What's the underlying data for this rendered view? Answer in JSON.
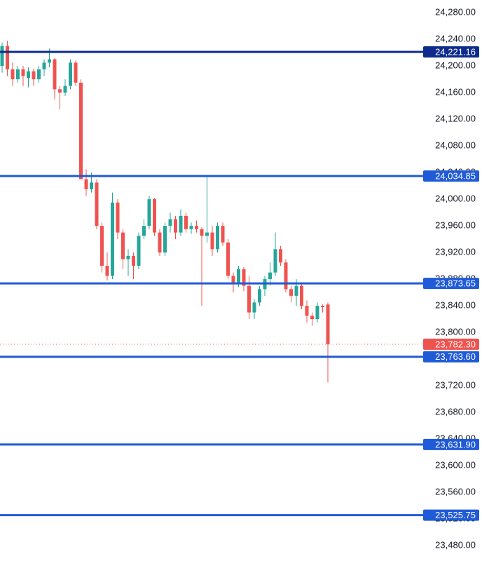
{
  "chart_data": {
    "type": "candlestick",
    "ylim": [
      23457,
      24299
    ],
    "yticks": [
      {
        "value": 24280,
        "label": "24,280.00"
      },
      {
        "value": 24240,
        "label": "24,240.00"
      },
      {
        "value": 24200,
        "label": "24,200.00"
      },
      {
        "value": 24160,
        "label": "24,160.00"
      },
      {
        "value": 24120,
        "label": "24,120.00"
      },
      {
        "value": 24080,
        "label": "24,080.00"
      },
      {
        "value": 24040,
        "label": "24,040.00"
      },
      {
        "value": 24000,
        "label": "24,000.00"
      },
      {
        "value": 23960,
        "label": "23,960.00"
      },
      {
        "value": 23920,
        "label": "23,920.00"
      },
      {
        "value": 23880,
        "label": "23,880.00"
      },
      {
        "value": 23840,
        "label": "23,840.00"
      },
      {
        "value": 23800,
        "label": "23,800.00"
      },
      {
        "value": 23760,
        "label": "23,760.00"
      },
      {
        "value": 23720,
        "label": "23,720.00"
      },
      {
        "value": 23680,
        "label": "23,680.00"
      },
      {
        "value": 23640,
        "label": "23,640.00"
      },
      {
        "value": 23600,
        "label": "23,600.00"
      },
      {
        "value": 23560,
        "label": "23,560.00"
      },
      {
        "value": 23520,
        "label": "23,520.00"
      },
      {
        "value": 23480,
        "label": "23,480.00"
      }
    ],
    "up_color": "#26a69a",
    "down_color": "#ef5350",
    "open": [
      24200,
      24230,
      24195,
      24180,
      24195,
      24182,
      24192,
      24180,
      24195,
      24205,
      24210,
      24165,
      24160,
      24170,
      24205,
      24175,
      24030,
      24015,
      24025,
      23960,
      23900,
      23885,
      23995,
      23950,
      23910,
      23915,
      23900,
      23945,
      23960,
      24000,
      23950,
      23920,
      23960,
      23970,
      23950,
      23975,
      23955,
      23960,
      23955,
      23945,
      23950,
      23925,
      23960,
      23935,
      23885,
      23875,
      23895,
      23870,
      23830,
      23845,
      23865,
      23880,
      23890,
      23925,
      23905,
      23865,
      23855,
      23870,
      23840,
      23825,
      23820,
      23840,
      23842
    ],
    "high": [
      24235,
      24238,
      24205,
      24200,
      24200,
      24198,
      24196,
      24200,
      24210,
      24226,
      24212,
      24170,
      24180,
      24210,
      24208,
      24180,
      24045,
      24040,
      24030,
      23965,
      23920,
      24010,
      24000,
      23955,
      23925,
      23920,
      23950,
      23970,
      24005,
      24002,
      23955,
      23965,
      23980,
      23975,
      23985,
      23980,
      23965,
      23968,
      23958,
      24035,
      23960,
      23965,
      23965,
      23940,
      23890,
      23900,
      23898,
      23885,
      23850,
      23870,
      23885,
      23905,
      23950,
      23930,
      23910,
      23870,
      23880,
      23875,
      23848,
      23830,
      23845,
      23842,
      23845
    ],
    "low": [
      24190,
      24185,
      24170,
      24175,
      24170,
      24168,
      24170,
      24175,
      24185,
      24198,
      24150,
      24135,
      24155,
      24165,
      24170,
      24030,
      24005,
      24010,
      23955,
      23890,
      23878,
      23880,
      23940,
      23895,
      23885,
      23880,
      23895,
      23940,
      23955,
      23945,
      23915,
      23915,
      23950,
      23940,
      23945,
      23950,
      23948,
      23950,
      23840,
      23935,
      23915,
      23920,
      23930,
      23880,
      23860,
      23868,
      23862,
      23820,
      23820,
      23840,
      23855,
      23870,
      23885,
      23900,
      23860,
      23845,
      23840,
      23835,
      23815,
      23810,
      23815,
      23830,
      23725
    ],
    "close": [
      24230,
      24195,
      24180,
      24195,
      24185,
      24192,
      24180,
      24195,
      24205,
      24210,
      24165,
      24160,
      24170,
      24205,
      24175,
      24030,
      24015,
      24025,
      23960,
      23900,
      23885,
      23995,
      23950,
      23910,
      23915,
      23900,
      23945,
      23960,
      24000,
      23950,
      23920,
      23960,
      23970,
      23950,
      23975,
      23955,
      23960,
      23955,
      23945,
      23950,
      23925,
      23960,
      23935,
      23885,
      23875,
      23895,
      23870,
      23830,
      23845,
      23865,
      23880,
      23890,
      23925,
      23905,
      23865,
      23855,
      23870,
      23840,
      23825,
      23820,
      23840,
      23838,
      23782.3
    ],
    "levels": [
      {
        "value": 24221.16,
        "label": "24,221.16",
        "color": "#0d2a8c"
      },
      {
        "value": 24034.85,
        "label": "24,034.85",
        "color": "#1f5ad8"
      },
      {
        "value": 23873.65,
        "label": "23,873.65",
        "color": "#1f5ad8"
      },
      {
        "value": 23763.6,
        "label": "23,763.60",
        "color": "#1f5ad8"
      },
      {
        "value": 23631.9,
        "label": "23,631.90",
        "color": "#1f5ad8"
      },
      {
        "value": 23525.75,
        "label": "23,525.75",
        "color": "#1f5ad8"
      }
    ],
    "last_price": {
      "value": 23782.3,
      "label": "23,782.30",
      "color": "#ef5350"
    }
  }
}
